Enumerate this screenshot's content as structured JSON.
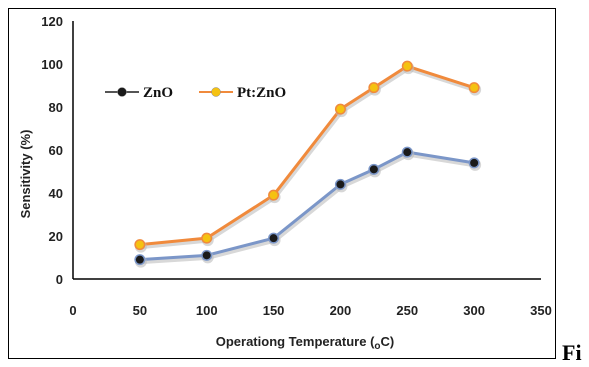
{
  "chart_data": {
    "type": "line",
    "xlabel": "Operationg Temperature (",
    "xlabel_sub": "o",
    "xlabel_end": "C)",
    "ylabel": "Sensitivity (%)",
    "xlim": [
      0,
      350
    ],
    "ylim": [
      0,
      120
    ],
    "x_ticks": [
      "0",
      "50",
      "100",
      "150",
      "200",
      "250",
      "300",
      "350"
    ],
    "y_ticks": [
      "0",
      "20",
      "40",
      "60",
      "80",
      "100",
      "120"
    ],
    "legend_position": "top-left",
    "grid": false,
    "series": [
      {
        "name": "ZnO",
        "x": [
          50,
          100,
          150,
          200,
          225,
          250,
          300
        ],
        "y": [
          9,
          11,
          19,
          44,
          51,
          59,
          54
        ],
        "line_color": "#7b96c8",
        "marker_color": "#1a1a1a"
      },
      {
        "name": "Pt:ZnO",
        "x": [
          50,
          100,
          150,
          200,
          225,
          250,
          300
        ],
        "y": [
          16,
          19,
          39,
          79,
          89,
          99,
          89
        ],
        "line_color": "#f08a3c",
        "marker_color": "#f5c211"
      }
    ]
  },
  "trailing_text": "Fi"
}
